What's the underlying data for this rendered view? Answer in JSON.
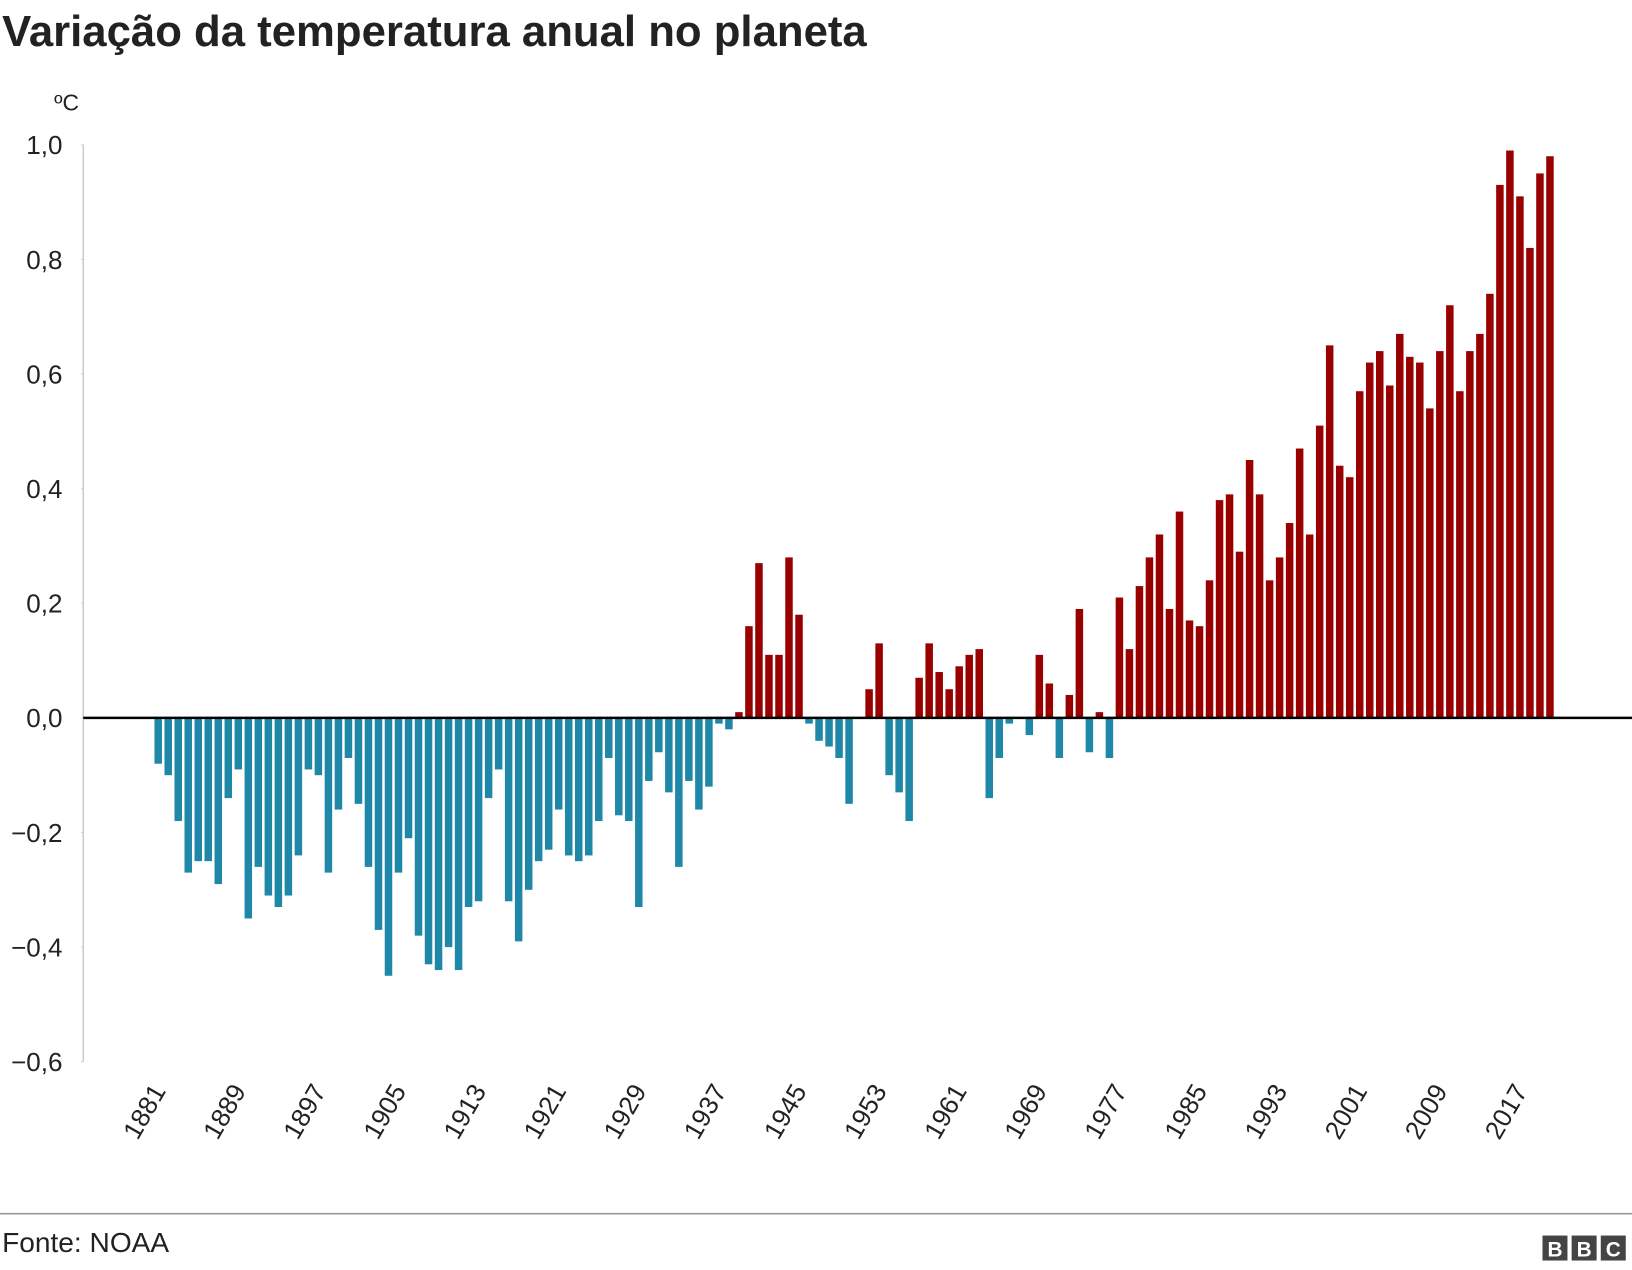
{
  "chart_data": {
    "type": "bar",
    "title": "Variação da temperatura anual no planeta",
    "unit_label": "ºC",
    "source": "Fonte: NOAA",
    "logo": [
      "B",
      "B",
      "C"
    ],
    "categories": [
      "1881",
      null,
      null,
      null,
      null,
      null,
      null,
      null,
      "1889",
      null,
      null,
      null,
      null,
      null,
      null,
      null,
      "1897",
      null,
      null,
      null,
      null,
      null,
      null,
      null,
      "1905",
      null,
      null,
      null,
      null,
      null,
      null,
      null,
      "1913",
      null,
      null,
      null,
      null,
      null,
      null,
      null,
      "1921",
      null,
      null,
      null,
      null,
      null,
      null,
      null,
      "1929",
      null,
      null,
      null,
      null,
      null,
      null,
      null,
      "1937",
      null,
      null,
      null,
      null,
      null,
      null,
      null,
      "1945",
      null,
      null,
      null,
      null,
      null,
      null,
      null,
      "1953",
      null,
      null,
      null,
      null,
      null,
      null,
      null,
      "1961",
      null,
      null,
      null,
      null,
      null,
      null,
      null,
      "1969",
      null,
      null,
      null,
      null,
      null,
      null,
      null,
      "1977",
      null,
      null,
      null,
      null,
      null,
      null,
      null,
      "1985",
      null,
      null,
      null,
      null,
      null,
      null,
      null,
      "1993",
      null,
      null,
      null,
      null,
      null,
      null,
      null,
      "2001",
      null,
      null,
      null,
      null,
      null,
      null,
      null,
      "2009",
      null,
      null,
      null,
      null,
      null,
      null,
      null,
      "2017",
      null,
      null,
      null
    ],
    "values": [
      -0.08,
      -0.1,
      -0.18,
      -0.27,
      -0.25,
      -0.25,
      -0.29,
      -0.14,
      -0.09,
      -0.35,
      -0.26,
      -0.31,
      -0.33,
      -0.31,
      -0.24,
      -0.09,
      -0.1,
      -0.27,
      -0.16,
      -0.07,
      -0.15,
      -0.26,
      -0.37,
      -0.45,
      -0.27,
      -0.21,
      -0.38,
      -0.43,
      -0.44,
      -0.4,
      -0.44,
      -0.33,
      -0.32,
      -0.14,
      -0.09,
      -0.32,
      -0.39,
      -0.3,
      -0.25,
      -0.23,
      -0.16,
      -0.24,
      -0.25,
      -0.24,
      -0.18,
      -0.07,
      -0.17,
      -0.18,
      -0.33,
      -0.11,
      -0.06,
      -0.13,
      -0.26,
      -0.11,
      -0.16,
      -0.12,
      -0.01,
      -0.02,
      0.01,
      0.16,
      0.27,
      0.11,
      0.11,
      0.28,
      0.18,
      -0.01,
      -0.04,
      -0.05,
      -0.07,
      -0.15,
      0,
      0.05,
      0.13,
      -0.1,
      -0.13,
      -0.18,
      0.07,
      0.13,
      0.08,
      0.05,
      0.09,
      0.11,
      0.12,
      -0.14,
      -0.07,
      -0.01,
      0,
      -0.03,
      0.11,
      0.06,
      -0.07,
      0.04,
      0.19,
      -0.06,
      0.01,
      -0.07,
      0.21,
      0.12,
      0.23,
      0.28,
      0.32,
      0.19,
      0.36,
      0.17,
      0.16,
      0.24,
      0.38,
      0.39,
      0.29,
      0.45,
      0.39,
      0.24,
      0.28,
      0.34,
      0.47,
      0.32,
      0.51,
      0.65,
      0.44,
      0.42,
      0.57,
      0.62,
      0.64,
      0.58,
      0.67,
      0.63,
      0.62,
      0.54,
      0.64,
      0.72,
      0.57,
      0.64,
      0.67,
      0.74,
      0.93,
      0.99,
      0.91,
      0.82,
      0.95,
      0.98
    ],
    "positive_color": "#990000",
    "negative_color": "#1f87a7",
    "ylim": [
      -0.6,
      1.0
    ],
    "yticks": [
      {
        "value": -0.6,
        "label": "−0,6"
      },
      {
        "value": -0.4,
        "label": "−0,4"
      },
      {
        "value": -0.2,
        "label": "−0,2"
      },
      {
        "value": 0,
        "label": "0,0"
      },
      {
        "value": 0.2,
        "label": "0,2"
      },
      {
        "value": 0.4,
        "label": "0,4"
      },
      {
        "value": 0.6,
        "label": "0,6"
      },
      {
        "value": 0.8,
        "label": "0,8"
      },
      {
        "value": 1.0,
        "label": "1,0"
      }
    ]
  }
}
